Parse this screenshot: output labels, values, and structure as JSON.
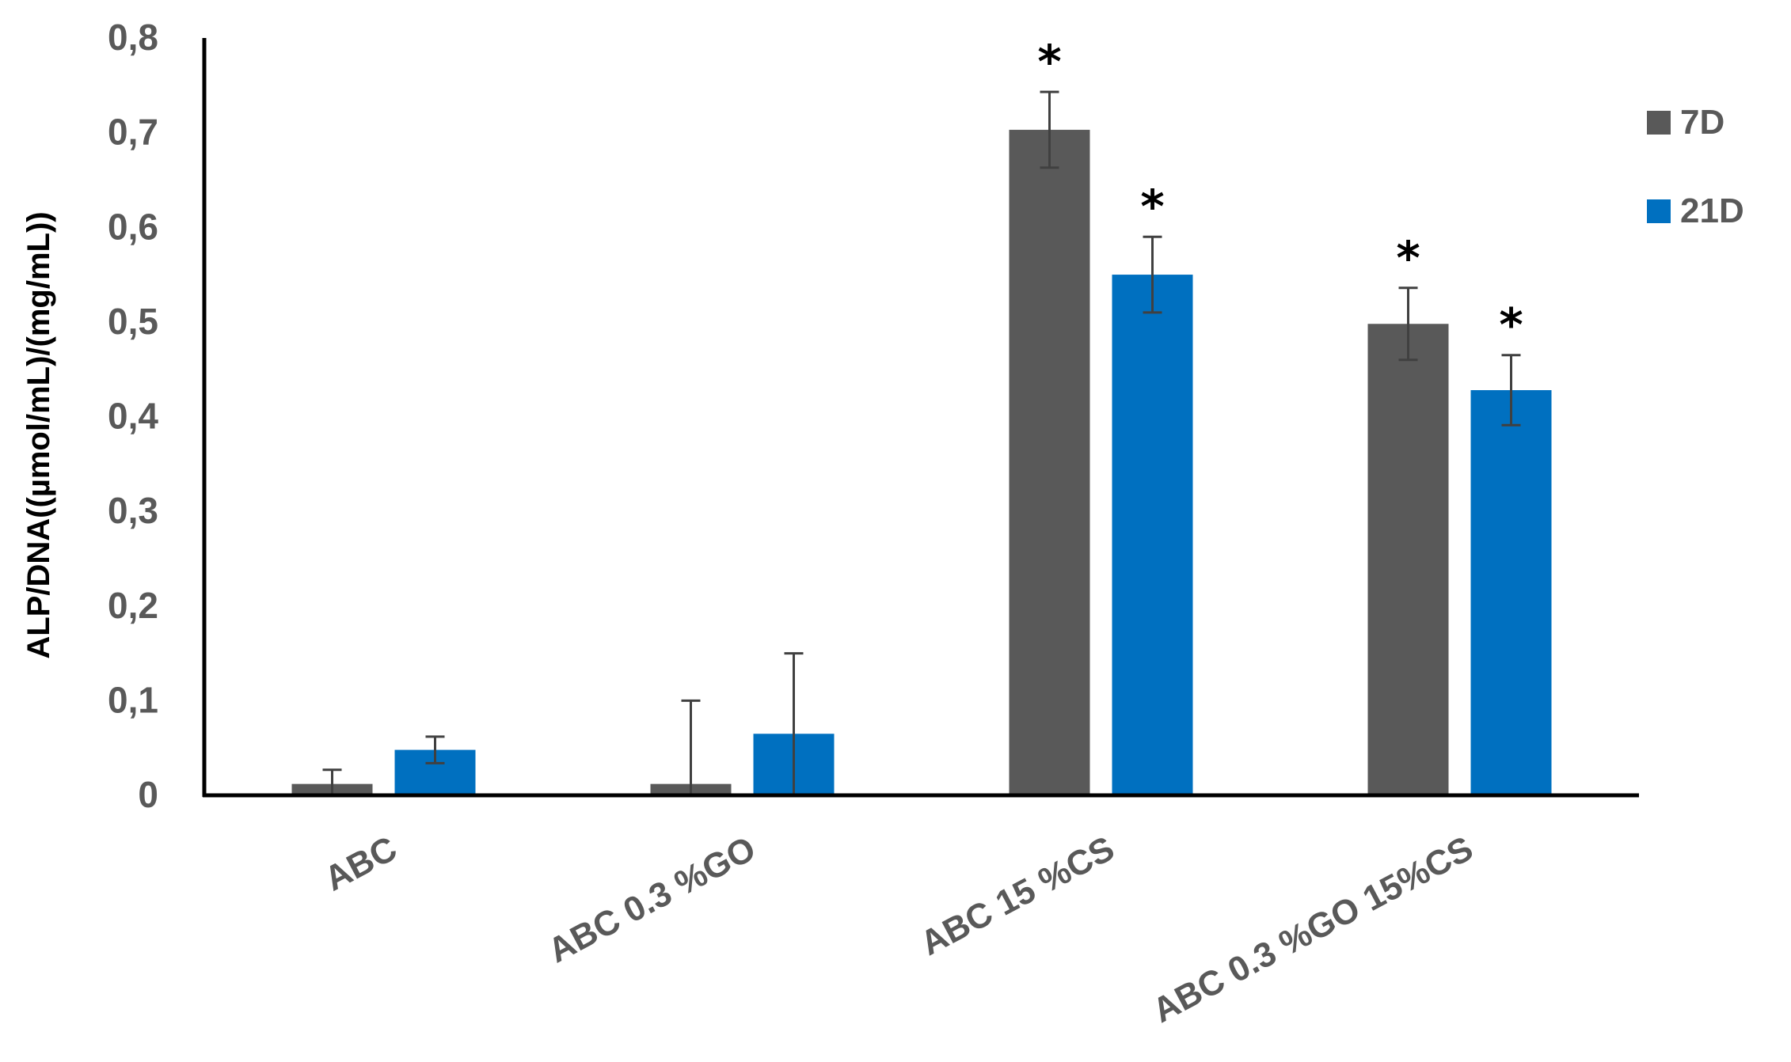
{
  "chart_data": {
    "type": "bar",
    "title": "",
    "xlabel": "",
    "ylabel": "ALP/DNA((µmol/mL)/(mg/mL))",
    "ylim": [
      0,
      0.8
    ],
    "yticks": [
      0,
      0.1,
      0.2,
      0.3,
      0.4,
      0.5,
      0.6,
      0.7,
      0.8
    ],
    "ytick_labels": [
      "0",
      "0,1",
      "0,2",
      "0,3",
      "0,4",
      "0,5",
      "0,6",
      "0,7",
      "0,8"
    ],
    "grid": false,
    "legend_position": "right",
    "categories": [
      "ABC",
      "ABC 0.3 %GO",
      "ABC 15 %CS",
      "ABC 0.3 %GO 15%CS"
    ],
    "series": [
      {
        "name": "7D",
        "color": "#595959",
        "values": [
          0.012,
          0.012,
          0.703,
          0.498
        ],
        "errors": [
          0.015,
          0.088,
          0.04,
          0.038
        ],
        "annotations": [
          "",
          "",
          "*",
          "*"
        ]
      },
      {
        "name": "21D",
        "color": "#0070c0",
        "values": [
          0.048,
          0.065,
          0.55,
          0.428
        ],
        "errors": [
          0.014,
          0.085,
          0.04,
          0.037
        ],
        "annotations": [
          "",
          "",
          "*",
          "*"
        ]
      }
    ]
  }
}
